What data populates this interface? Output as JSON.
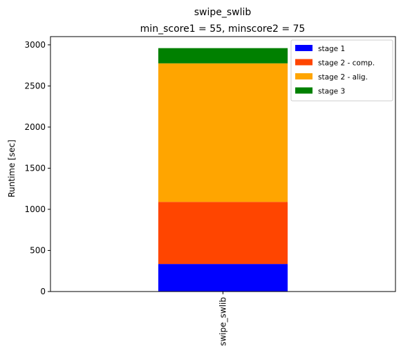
{
  "chart_data": {
    "type": "bar",
    "stacked": true,
    "title": "swipe_swlib",
    "subtitle": "min_score1 = 55, minscore2 = 75",
    "xlabel": "",
    "ylabel": "Runtime [sec]",
    "categories": [
      "swipe_swlib"
    ],
    "ylim": [
      0,
      3100
    ],
    "yticks": [
      0,
      500,
      1000,
      1500,
      2000,
      2500,
      3000
    ],
    "grid": false,
    "legend_position": "top-right",
    "series": [
      {
        "name": "stage 1",
        "color": "#0000ff",
        "values": [
          335
        ]
      },
      {
        "name": "stage 2 - comp.",
        "color": "#ff4500",
        "values": [
          755
        ]
      },
      {
        "name": "stage 2 - alig.",
        "color": "#ffa500",
        "values": [
          1685
        ]
      },
      {
        "name": "stage 3",
        "color": "#008000",
        "values": [
          185
        ]
      }
    ]
  }
}
